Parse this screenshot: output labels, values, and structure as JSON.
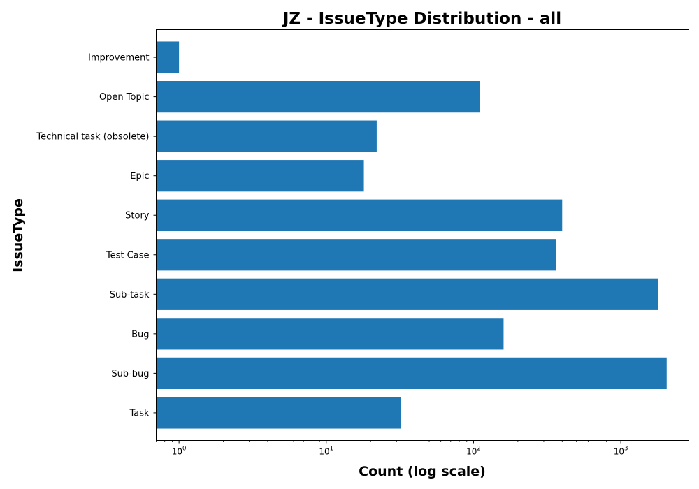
{
  "chart_data": {
    "type": "bar",
    "orientation": "horizontal",
    "title": "JZ - IssueType Distribution - all",
    "xlabel": "Count (log scale)",
    "ylabel": "IssueType",
    "x_scale": "log",
    "xlim": [
      0.7,
      2900
    ],
    "x_ticks": [
      {
        "value": 1,
        "base": "10",
        "exp": "0"
      },
      {
        "value": 10,
        "base": "10",
        "exp": "1"
      },
      {
        "value": 100,
        "base": "10",
        "exp": "2"
      },
      {
        "value": 1000,
        "base": "10",
        "exp": "3"
      }
    ],
    "categories": [
      "Improvement",
      "Open Topic",
      "Technical task (obsolete)",
      "Epic",
      "Story",
      "Test Case",
      "Sub-task",
      "Bug",
      "Sub-bug",
      "Task"
    ],
    "values": [
      1,
      110,
      22,
      18,
      400,
      365,
      1800,
      160,
      2050,
      32
    ],
    "bar_color": "#1f77b4",
    "grid": false,
    "legend": "none"
  }
}
